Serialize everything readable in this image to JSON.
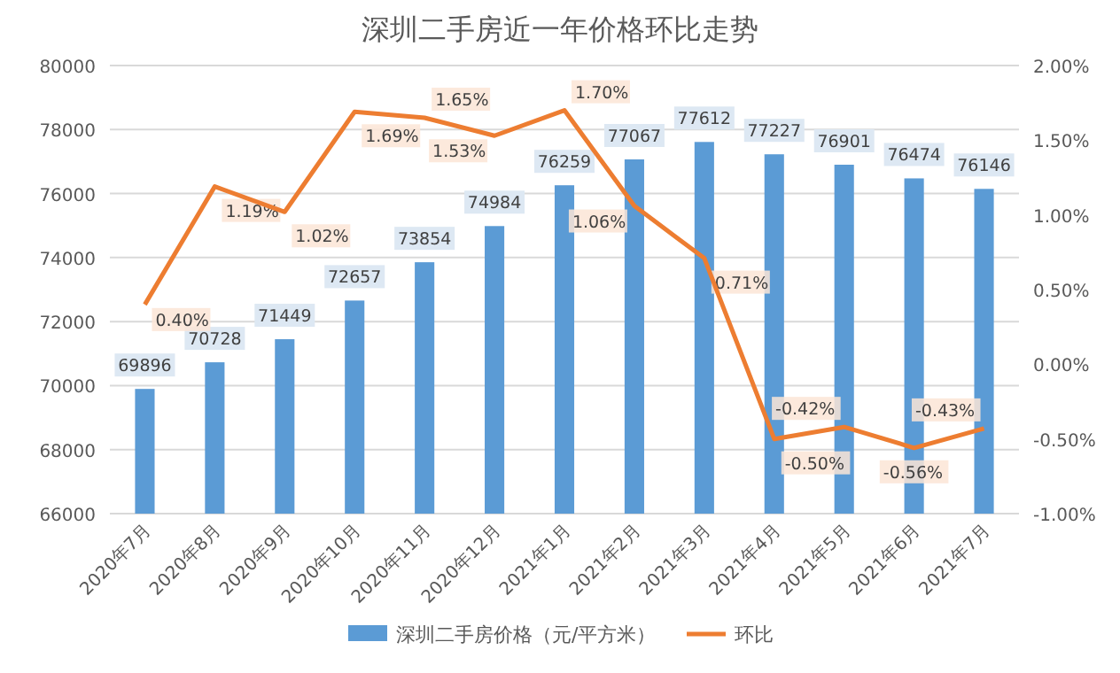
{
  "chart_data": {
    "type": "bar",
    "title": "深圳二手房近一年价格环比走势",
    "categories": [
      "2020年7月",
      "2020年8月",
      "2020年9月",
      "2020年10月",
      "2020年11月",
      "2020年12月",
      "2021年1月",
      "2021年2月",
      "2021年3月",
      "2021年4月",
      "2021年5月",
      "2021年6月",
      "2021年7月"
    ],
    "series": [
      {
        "name": "深圳二手房价格（元/平方米）",
        "color": "#5b9bd5",
        "values": [
          69896,
          70728,
          71449,
          72657,
          73854,
          74984,
          76259,
          77067,
          77612,
          77227,
          76901,
          76474,
          76146
        ],
        "value_labels": [
          "69896",
          "70728",
          "71449",
          "72657",
          "73854",
          "74984",
          "76259",
          "77067",
          "77612",
          "77227",
          "76901",
          "76474",
          "76146"
        ]
      },
      {
        "name": "环比",
        "type": "line",
        "axis": "y2",
        "color": "#ed7d31",
        "values": [
          0.4,
          1.19,
          1.02,
          1.69,
          1.65,
          1.53,
          1.7,
          1.06,
          0.71,
          -0.5,
          -0.42,
          -0.56,
          -0.43
        ],
        "value_labels": [
          "0.40%",
          "1.19%",
          "1.02%",
          "1.69%",
          "1.65%",
          "1.53%",
          "1.70%",
          "1.06%",
          "0.71%",
          "-0.50%",
          "-0.42%",
          "-0.56%",
          "-0.43%"
        ]
      }
    ],
    "ylim": [
      66000,
      80000
    ],
    "yticks": [
      66000,
      68000,
      70000,
      72000,
      74000,
      76000,
      78000,
      80000
    ],
    "y2lim": [
      -1,
      2
    ],
    "y2ticks": [
      {
        "value": -1,
        "label": "-1.00%"
      },
      {
        "value": -0.5,
        "label": "-0.50%"
      },
      {
        "value": 0,
        "label": "0.00%"
      },
      {
        "value": 0.5,
        "label": "0.50%"
      },
      {
        "value": 1,
        "label": "1.00%"
      },
      {
        "value": 1.5,
        "label": "1.50%"
      },
      {
        "value": 2,
        "label": "2.00%"
      }
    ],
    "grid": "y",
    "legend": "bottom",
    "marker": "none",
    "line_style": "solid"
  }
}
